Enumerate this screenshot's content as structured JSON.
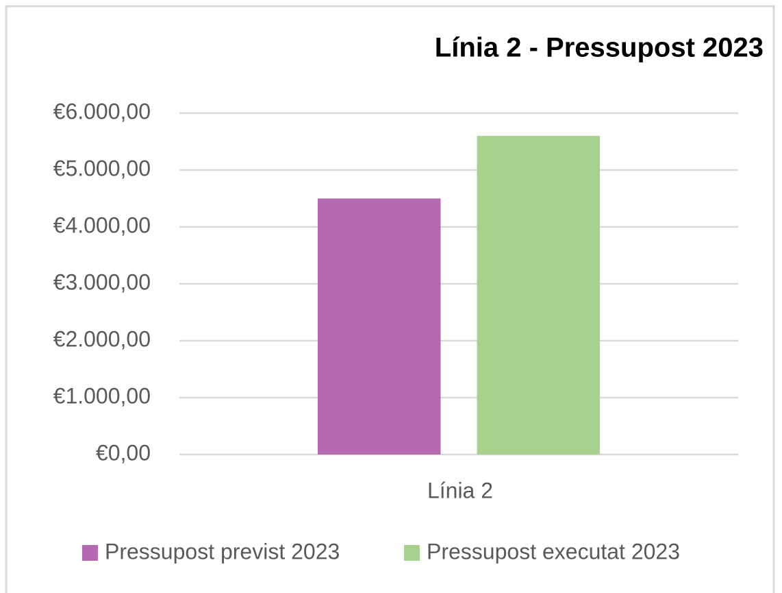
{
  "chart_data": {
    "type": "bar",
    "title": "Línia 2 - Pressupost 2023",
    "categories": [
      "Línia 2"
    ],
    "series": [
      {
        "name": "Pressupost previst 2023",
        "color": "#b469b0",
        "values": [
          4500
        ]
      },
      {
        "name": "Pressupost executat 2023",
        "color": "#a9d18e",
        "values": [
          5600
        ]
      }
    ],
    "ylim": [
      0,
      6000
    ],
    "yticks": [
      {
        "value": 0,
        "label": "€0,00"
      },
      {
        "value": 1000,
        "label": "€1.000,00"
      },
      {
        "value": 2000,
        "label": "€2.000,00"
      },
      {
        "value": 3000,
        "label": "€3.000,00"
      },
      {
        "value": 4000,
        "label": "€4.000,00"
      },
      {
        "value": 5000,
        "label": "€5.000,00"
      },
      {
        "value": 6000,
        "label": "€6.000,00"
      }
    ],
    "grid": true,
    "legend": "bottom"
  }
}
